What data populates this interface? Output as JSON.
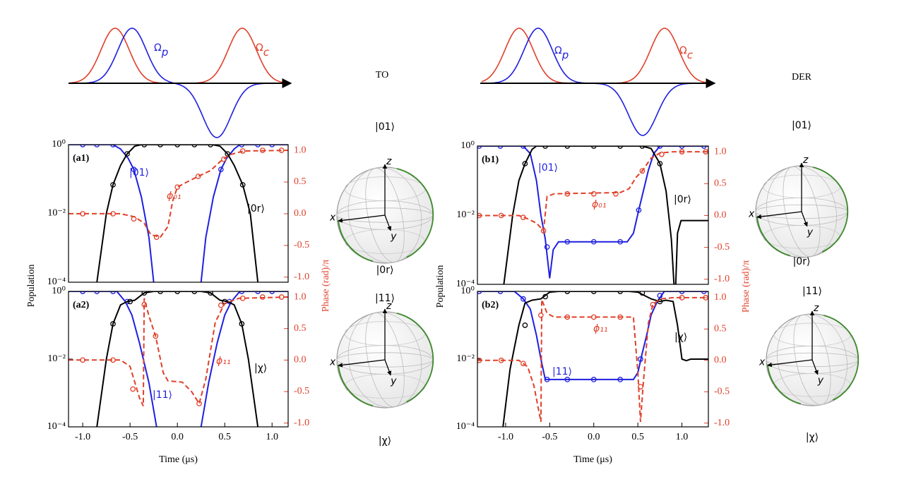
{
  "figure": {
    "pulses": [
      {
        "title": "TO",
        "probe": {
          "base": "Ω",
          "sub": "p"
        },
        "control": {
          "base": "Ω",
          "sub": "c"
        }
      },
      {
        "title": "DER",
        "probe": {
          "base": "Ω",
          "sub": "p"
        },
        "control": {
          "base": "Ω",
          "sub": "c"
        }
      }
    ],
    "bloch": [
      {
        "top": "|01⟩",
        "bottom": "|0r⟩"
      },
      {
        "top": "|11⟩",
        "bottom": "|χ⟩"
      },
      {
        "top": "|01⟩",
        "bottom": "|0r⟩"
      },
      {
        "top": "|11⟩",
        "bottom": "|χ⟩"
      }
    ],
    "bloch_axes": {
      "x": "x",
      "y": "y",
      "z": "z"
    }
  },
  "chart_data": [
    {
      "type": "line",
      "label": "(a1)",
      "yscale": "log",
      "xlim": [
        -1.15,
        1.17
      ],
      "ylim": [
        0.0001,
        1
      ],
      "yticks": [
        {
          "value": 1,
          "label": "10⁰"
        },
        {
          "value": 0.01,
          "label": "10⁻²"
        },
        {
          "value": 0.0001,
          "label": "10⁻⁴"
        }
      ],
      "y2lim": [
        -1.08,
        1.09
      ],
      "y2ticks": [
        {
          "value": 1,
          "label": "1.0"
        },
        0.5,
        {
          "value": 0,
          "label": "0.0"
        },
        -0.5,
        {
          "value": -1,
          "label": "-1.0"
        }
      ],
      "series": [
        {
          "name": "|01⟩",
          "color": "#1f1fe0",
          "x": [
            -1.15,
            -0.68,
            -0.6,
            -0.52,
            -0.46,
            -0.38,
            -0.3,
            -0.25,
            null,
            0.25,
            0.3,
            0.38,
            0.46,
            0.52,
            0.6,
            0.66,
            1.17
          ],
          "values": [
            1,
            1,
            0.75,
            0.4,
            0.19,
            0.03,
            0.002,
            0.0001,
            null,
            0.0001,
            0.002,
            0.03,
            0.19,
            0.4,
            0.75,
            1,
            1
          ],
          "marker_x": [
            -1.0,
            -0.85,
            -0.68,
            -0.46,
            0.46,
            0.68,
            0.85,
            1.0
          ],
          "marker_values": [
            1,
            1,
            1,
            0.19,
            0.19,
            1,
            1,
            1
          ]
        },
        {
          "name": "|0r⟩",
          "color": "#000000",
          "x": [
            -0.85,
            -0.75,
            -0.68,
            -0.6,
            -0.53,
            -0.45,
            -0.38,
            0.37,
            0.45,
            0.53,
            0.6,
            0.69,
            0.77,
            0.85
          ],
          "values": [
            0.0001,
            0.01,
            0.068,
            0.25,
            0.54,
            0.9,
            1,
            1,
            0.9,
            0.54,
            0.25,
            0.068,
            0.01,
            0.0001
          ],
          "marker_x": [
            -0.68,
            -0.53,
            -0.35,
            -0.18,
            0,
            0.18,
            0.35,
            0.53,
            0.69
          ],
          "marker_values": [
            0.068,
            0.54,
            1,
            1,
            1,
            1,
            1,
            0.54,
            0.068
          ]
        },
        {
          "name": "ϕ₀₁",
          "color": "#e0402a",
          "axis": "y2",
          "dashed": true,
          "x": [
            -1.15,
            -0.6,
            -0.45,
            -0.35,
            -0.28,
            -0.18,
            -0.1,
            -0.05,
            0,
            0.1,
            0.22,
            0.35,
            0.45,
            0.55,
            0.7,
            1.17
          ],
          "values": [
            0,
            0,
            -0.05,
            -0.15,
            -0.33,
            -0.37,
            -0.2,
            0.2,
            0.42,
            0.5,
            0.59,
            0.68,
            0.82,
            0.93,
            0.99,
            1
          ],
          "marker_x": [
            -1.0,
            -0.68,
            -0.46,
            -0.22,
            0,
            0.22,
            0.49,
            0.69,
            0.9,
            1.1
          ],
          "marker_values": [
            0,
            0,
            -0.08,
            -0.37,
            0.42,
            0.59,
            0.86,
            0.99,
            1,
            1
          ]
        }
      ]
    },
    {
      "type": "line",
      "label": "(a2)",
      "yscale": "log",
      "xlim": [
        -1.15,
        1.17
      ],
      "ylim": [
        0.0001,
        1
      ],
      "xticks": [
        {
          "value": -1,
          "label": "-1.0"
        },
        -0.5,
        {
          "value": 0,
          "label": "0.0"
        },
        0.5,
        {
          "value": 1,
          "label": "1.0"
        }
      ],
      "yticks": [
        {
          "value": 1,
          "label": "10⁰"
        },
        {
          "value": 0.01,
          "label": "10⁻²"
        },
        {
          "value": 0.0001,
          "label": "10⁻⁴"
        }
      ],
      "y2lim": [
        -1.06,
        1.09
      ],
      "y2ticks": [
        {
          "value": 1,
          "label": "1.0"
        },
        0.5,
        {
          "value": 0,
          "label": "0.0"
        },
        -0.5,
        {
          "value": -1,
          "label": "-1.0"
        }
      ],
      "xlabel": "Time (μs)",
      "ylabel": "Population",
      "y2label": "Phase (rad)/π",
      "series": [
        {
          "name": "|11⟩",
          "color": "#1f1fe0",
          "x": [
            -1.15,
            -0.64,
            -0.55,
            -0.48,
            -0.4,
            -0.3,
            -0.22,
            null,
            0.25,
            0.33,
            0.42,
            0.5,
            0.57,
            0.66,
            1.17
          ],
          "values": [
            1,
            1,
            0.5,
            0.2,
            0.03,
            0.002,
            0.0001,
            null,
            0.0001,
            0.002,
            0.03,
            0.2,
            0.5,
            1,
            1
          ],
          "marker_x": [
            -1.0,
            -0.85,
            -0.68,
            -0.53,
            0.55,
            0.68,
            0.85,
            1.0
          ],
          "marker_values": [
            1,
            1,
            1,
            0.5,
            0.5,
            1,
            1,
            1
          ]
        },
        {
          "name": "|χ⟩",
          "color": "#000000",
          "x": [
            -0.85,
            -0.75,
            -0.68,
            -0.6,
            -0.53,
            -0.45,
            -0.35,
            -0.25,
            0.25,
            0.35,
            0.45,
            0.53,
            0.6,
            0.68,
            0.75,
            0.85
          ],
          "values": [
            0.0001,
            0.01,
            0.11,
            0.4,
            0.5,
            0.55,
            0.9,
            1,
            1,
            0.9,
            0.55,
            0.5,
            0.4,
            0.11,
            0.01,
            0.0001
          ],
          "marker_x": [
            -0.68,
            -0.5,
            -0.35,
            -0.18,
            0,
            0.18,
            0.35,
            0.5,
            0.68
          ],
          "marker_values": [
            0.11,
            0.5,
            0.9,
            1,
            1,
            1,
            0.9,
            0.5,
            0.11
          ]
        },
        {
          "name": "ϕ₁₁",
          "color": "#e0402a",
          "axis": "y2",
          "dashed": true,
          "x": [
            -1.15,
            -0.6,
            -0.5,
            -0.45,
            -0.4,
            -0.36,
            -0.35,
            -0.3,
            -0.23,
            -0.15,
            -0.1,
            0.05,
            0.15,
            0.23,
            0.3,
            0.4,
            0.5,
            0.65,
            1.17
          ],
          "values": [
            0,
            0,
            -0.1,
            -0.35,
            -0.6,
            -0.73,
            0.98,
            0.7,
            0.38,
            -0.2,
            -0.33,
            -0.35,
            -0.5,
            -0.69,
            -0.3,
            0.6,
            0.9,
            0.98,
            1
          ],
          "marker_x": [
            -1.0,
            -0.68,
            -0.47,
            -0.35,
            -0.23,
            0.23,
            0.46,
            0.69,
            0.9,
            1.1
          ],
          "marker_values": [
            0,
            0,
            -0.46,
            0.88,
            0.38,
            -0.69,
            0.87,
            0.98,
            1,
            1
          ]
        }
      ]
    },
    {
      "type": "line",
      "label": "(b1)",
      "yscale": "log",
      "xlim": [
        -1.32,
        1.3
      ],
      "ylim": [
        0.0001,
        1
      ],
      "yticks": [
        {
          "value": 1,
          "label": "10⁰"
        },
        {
          "value": 0.01,
          "label": "10⁻²"
        },
        {
          "value": 0.0001,
          "label": "10⁻⁴"
        }
      ],
      "y2lim": [
        -1.08,
        1.09
      ],
      "y2ticks": [
        {
          "value": 1,
          "label": "1.0"
        },
        0.5,
        {
          "value": 0,
          "label": "0.0"
        },
        -0.5,
        {
          "value": -1,
          "label": "-1.0"
        }
      ],
      "series": [
        {
          "name": "|01⟩",
          "color": "#1f1fe0",
          "x": [
            -1.32,
            -0.8,
            -0.72,
            -0.65,
            -0.6,
            -0.55,
            -0.5,
            -0.46,
            -0.4,
            0.38,
            0.45,
            0.51,
            0.57,
            0.62,
            0.68,
            0.75,
            1.3
          ],
          "values": [
            1,
            1,
            0.6,
            0.1,
            0.01,
            0.002,
            0.00015,
            0.001,
            0.0017,
            0.0017,
            0.003,
            0.014,
            0.06,
            0.2,
            0.6,
            1,
            1
          ],
          "marker_x": [
            -1.3,
            -1.06,
            -0.8,
            -0.53,
            -0.3,
            0,
            0.3,
            0.51,
            0.75,
            1.0,
            1.25
          ],
          "marker_values": [
            1,
            1,
            1,
            0.0012,
            0.0017,
            0.0017,
            0.0017,
            0.014,
            1,
            1,
            1
          ]
        },
        {
          "name": "|0r⟩",
          "color": "#000000",
          "x": [
            -1.02,
            -0.92,
            -0.85,
            -0.78,
            -0.7,
            -0.65,
            0.55,
            0.65,
            0.75,
            0.82,
            0.88,
            0.91,
            0.93,
            0.95,
            0.99,
            1.3
          ],
          "values": [
            0.0001,
            0.01,
            0.1,
            0.31,
            0.8,
            1,
            1,
            0.85,
            0.31,
            0.05,
            0.002,
            0.0001,
            0.0001,
            0.003,
            0.007,
            0.007
          ],
          "marker_x": [
            -0.78,
            -0.55,
            -0.3,
            0,
            0.3,
            0.55,
            0.75
          ],
          "marker_values": [
            0.31,
            1,
            1,
            1,
            1,
            1,
            0.31
          ]
        },
        {
          "name": "ϕ₀₁",
          "color": "#e0402a",
          "axis": "y2",
          "dashed": true,
          "x": [
            -1.32,
            -0.85,
            -0.75,
            -0.65,
            -0.57,
            -0.53,
            -0.45,
            0.3,
            0.4,
            0.48,
            0.55,
            0.65,
            0.75,
            0.9,
            1.3
          ],
          "values": [
            0,
            0,
            -0.05,
            -0.12,
            -0.24,
            0.3,
            0.34,
            0.36,
            0.42,
            0.6,
            0.7,
            0.9,
            0.98,
            1,
            1
          ],
          "marker_x": [
            -1.3,
            -1.05,
            -0.8,
            -0.57,
            -0.3,
            0,
            0.25,
            0.55,
            0.77,
            1.0,
            1.27
          ],
          "marker_values": [
            0,
            0,
            -0.03,
            -0.24,
            0.34,
            0.34,
            0.34,
            0.7,
            0.96,
            1,
            1
          ]
        }
      ]
    },
    {
      "type": "line",
      "label": "(b2)",
      "yscale": "log",
      "xlim": [
        -1.32,
        1.3
      ],
      "ylim": [
        0.0001,
        1
      ],
      "xticks": [
        {
          "value": -1,
          "label": "-1.0"
        },
        -0.5,
        {
          "value": 0,
          "label": "0.0"
        },
        0.5,
        {
          "value": 1,
          "label": "1.0"
        }
      ],
      "yticks": [
        {
          "value": 1,
          "label": "10⁰"
        },
        {
          "value": 0.01,
          "label": "10⁻²"
        },
        {
          "value": 0.0001,
          "label": "10⁻⁴"
        }
      ],
      "y2lim": [
        -1.06,
        1.1
      ],
      "y2ticks": [
        {
          "value": 1,
          "label": "1.0"
        },
        0.5,
        {
          "value": 0,
          "label": "0.0"
        },
        -0.5,
        {
          "value": -1,
          "label": "-1.0"
        }
      ],
      "xlabel": "Time (μs)",
      "ylabel": "Population",
      "y2label": "Phase (rad)/π",
      "series": [
        {
          "name": "|11⟩",
          "color": "#1f1fe0",
          "x": [
            -1.32,
            -0.9,
            -0.8,
            -0.72,
            -0.65,
            -0.6,
            -0.55,
            0.45,
            0.5,
            0.55,
            0.6,
            0.65,
            0.72,
            0.8,
            1.3
          ],
          "values": [
            1,
            1,
            0.6,
            0.3,
            0.05,
            0.01,
            0.0025,
            0.0025,
            0.004,
            0.015,
            0.05,
            0.2,
            0.5,
            1,
            1
          ],
          "marker_x": [
            -1.3,
            -1.06,
            -0.8,
            -0.53,
            -0.3,
            0,
            0.3,
            0.53,
            0.75,
            1.0,
            1.25
          ],
          "marker_values": [
            1,
            1,
            0.6,
            0.0025,
            0.0025,
            0.0025,
            0.0025,
            0.01,
            0.75,
            1,
            1
          ]
        },
        {
          "name": "|χ⟩",
          "color": "#000000",
          "x": [
            -1.03,
            -0.95,
            -0.85,
            -0.78,
            -0.7,
            -0.6,
            -0.5,
            -0.4,
            0.4,
            0.5,
            0.65,
            0.75,
            0.82,
            0.9,
            0.95,
            1.0,
            1.05,
            1.1,
            1.3
          ],
          "values": [
            0.0001,
            0.005,
            0.1,
            0.45,
            0.55,
            0.6,
            0.95,
            1,
            1,
            0.95,
            0.6,
            0.5,
            0.55,
            0.5,
            0.1,
            0.01,
            0.009,
            0.01,
            0.01
          ],
          "marker_x": [
            -0.78,
            -0.55,
            -0.3,
            0,
            0.3,
            0.55,
            0.75
          ],
          "marker_values": [
            0.1,
            0.7,
            1,
            1,
            1,
            0.9,
            0.5
          ]
        },
        {
          "name": "ϕ₁₁",
          "color": "#e0402a",
          "axis": "y2",
          "dashed": true,
          "x": [
            -1.32,
            -0.85,
            -0.75,
            -0.68,
            -0.6,
            -0.59,
            -0.53,
            -0.45,
            0.45,
            0.5,
            0.53,
            0.56,
            0.62,
            0.67,
            0.75,
            0.9,
            1.3
          ],
          "values": [
            0,
            0,
            -0.1,
            -0.4,
            -0.98,
            0.97,
            0.75,
            0.69,
            0.69,
            -0.2,
            -0.98,
            -0.4,
            0.6,
            0.89,
            0.98,
            1,
            1
          ],
          "marker_x": [
            -1.3,
            -1.05,
            -0.8,
            -0.6,
            -0.3,
            0,
            0.3,
            0.53,
            0.67,
            1.0,
            1.27
          ],
          "marker_values": [
            0,
            0,
            -0.05,
            0.72,
            0.69,
            0.69,
            0.69,
            -0.42,
            0.89,
            1,
            1
          ]
        }
      ]
    }
  ]
}
